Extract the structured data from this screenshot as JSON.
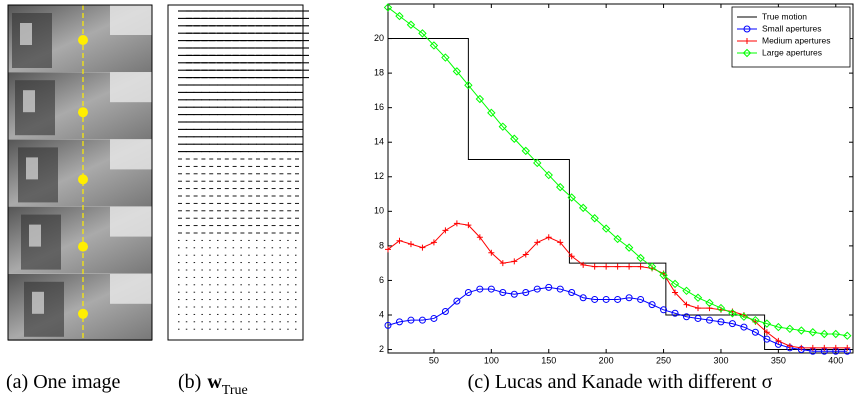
{
  "captions": {
    "a": "(a) One image",
    "b_prefix": "(b)",
    "b_symbol": "w",
    "b_subscript": "True",
    "c": "(c) Lucas and Kanade with different σ"
  },
  "chart_data": {
    "type": "line",
    "xlim": [
      10,
      415
    ],
    "ylim": [
      1.8,
      22
    ],
    "xticks": [
      50,
      100,
      150,
      200,
      250,
      300,
      350,
      400
    ],
    "yticks": [
      2,
      4,
      6,
      8,
      10,
      12,
      14,
      16,
      18,
      20
    ],
    "legend": "upper right",
    "series": [
      {
        "name": "True motion",
        "color": "#000000",
        "marker": "none",
        "x": [
          10,
          80,
          80,
          168,
          168,
          252,
          252,
          338,
          338,
          415
        ],
        "values": [
          20,
          20,
          13,
          13,
          7,
          7,
          4,
          4,
          2,
          2
        ]
      },
      {
        "name": "Small apertures",
        "color": "#0000ff",
        "marker": "circle",
        "x": [
          10,
          20,
          30,
          40,
          50,
          60,
          70,
          80,
          90,
          100,
          110,
          120,
          130,
          140,
          150,
          160,
          170,
          180,
          190,
          200,
          210,
          220,
          230,
          240,
          250,
          260,
          270,
          280,
          290,
          300,
          310,
          320,
          330,
          340,
          350,
          360,
          370,
          380,
          390,
          400,
          410
        ],
        "values": [
          3.4,
          3.6,
          3.7,
          3.7,
          3.8,
          4.2,
          4.8,
          5.3,
          5.5,
          5.5,
          5.3,
          5.2,
          5.3,
          5.5,
          5.6,
          5.5,
          5.3,
          5.0,
          4.9,
          4.9,
          4.9,
          5.0,
          4.9,
          4.6,
          4.3,
          4.1,
          3.9,
          3.8,
          3.7,
          3.6,
          3.5,
          3.3,
          3.0,
          2.6,
          2.3,
          2.1,
          2.0,
          1.9,
          1.9,
          1.9,
          1.9
        ]
      },
      {
        "name": "Medium apertures",
        "color": "#ff0000",
        "marker": "plus",
        "x": [
          10,
          20,
          30,
          40,
          50,
          60,
          70,
          80,
          90,
          100,
          110,
          120,
          130,
          140,
          150,
          160,
          170,
          180,
          190,
          200,
          210,
          220,
          230,
          240,
          250,
          260,
          270,
          280,
          290,
          300,
          310,
          320,
          330,
          340,
          350,
          360,
          370,
          380,
          390,
          400,
          410
        ],
        "values": [
          7.8,
          8.3,
          8.1,
          7.9,
          8.2,
          8.9,
          9.3,
          9.2,
          8.5,
          7.6,
          7.0,
          7.1,
          7.5,
          8.2,
          8.5,
          8.2,
          7.4,
          6.9,
          6.8,
          6.8,
          6.8,
          6.8,
          6.8,
          6.7,
          6.4,
          5.3,
          4.6,
          4.4,
          4.4,
          4.3,
          4.2,
          4.0,
          3.6,
          3.0,
          2.5,
          2.2,
          2.1,
          2.1,
          2.1,
          2.1,
          2.1
        ]
      },
      {
        "name": "Large apertures",
        "color": "#00ff00",
        "marker": "diamond",
        "x": [
          10,
          20,
          30,
          40,
          50,
          60,
          70,
          80,
          90,
          100,
          110,
          120,
          130,
          140,
          150,
          160,
          170,
          180,
          190,
          200,
          210,
          220,
          230,
          240,
          250,
          260,
          270,
          280,
          290,
          300,
          310,
          320,
          330,
          340,
          350,
          360,
          370,
          380,
          390,
          400,
          410
        ],
        "values": [
          21.8,
          21.3,
          20.8,
          20.3,
          19.6,
          18.9,
          18.1,
          17.3,
          16.5,
          15.7,
          14.9,
          14.2,
          13.5,
          12.8,
          12.1,
          11.4,
          10.8,
          10.2,
          9.6,
          9.0,
          8.4,
          7.9,
          7.3,
          6.8,
          6.3,
          5.8,
          5.4,
          5.0,
          4.7,
          4.4,
          4.1,
          3.9,
          3.7,
          3.5,
          3.3,
          3.2,
          3.1,
          3.0,
          2.9,
          2.9,
          2.8
        ]
      }
    ]
  }
}
